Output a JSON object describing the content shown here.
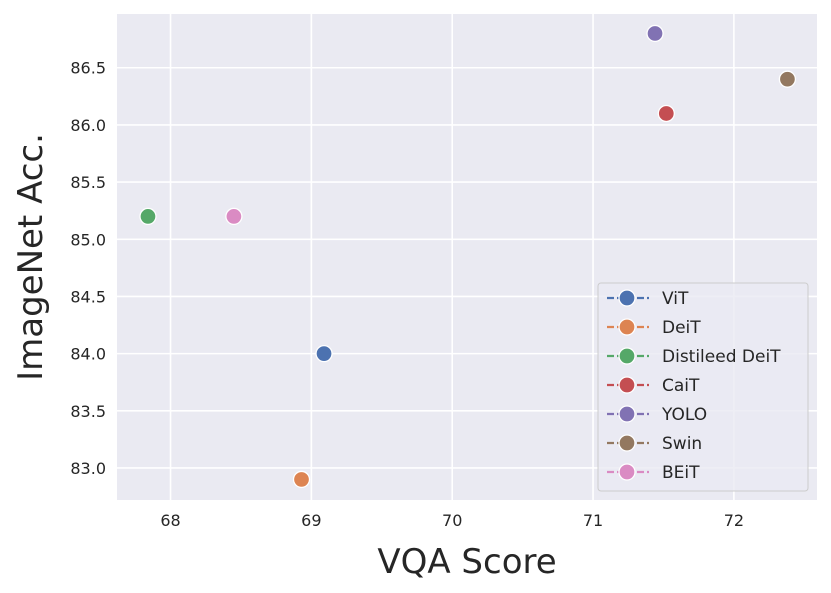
{
  "chart_data": {
    "type": "scatter",
    "title": "",
    "xlabel": "VQA Score",
    "ylabel": "ImageNet Acc.",
    "xlim": [
      67.62,
      72.59
    ],
    "ylim": [
      82.72,
      86.97
    ],
    "xticks": [
      68,
      69,
      70,
      71,
      72
    ],
    "yticks": [
      83.0,
      83.5,
      84.0,
      84.5,
      85.0,
      85.5,
      86.0,
      86.5
    ],
    "grid": true,
    "legend_position": "lower-right",
    "series": [
      {
        "name": "ViT",
        "x": 69.09,
        "y": 84.0,
        "color": "#4c72b0"
      },
      {
        "name": "DeiT",
        "x": 68.93,
        "y": 82.9,
        "color": "#dd8452"
      },
      {
        "name": "Distileed DeiT",
        "x": 67.84,
        "y": 85.2,
        "color": "#55a868"
      },
      {
        "name": "CaiT",
        "x": 71.52,
        "y": 86.1,
        "color": "#c44e52"
      },
      {
        "name": "YOLO",
        "x": 71.44,
        "y": 86.8,
        "color": "#8172b3"
      },
      {
        "name": "Swin",
        "x": 72.38,
        "y": 86.4,
        "color": "#937860"
      },
      {
        "name": "BEiT",
        "x": 68.45,
        "y": 85.2,
        "color": "#da8bc3"
      }
    ]
  }
}
